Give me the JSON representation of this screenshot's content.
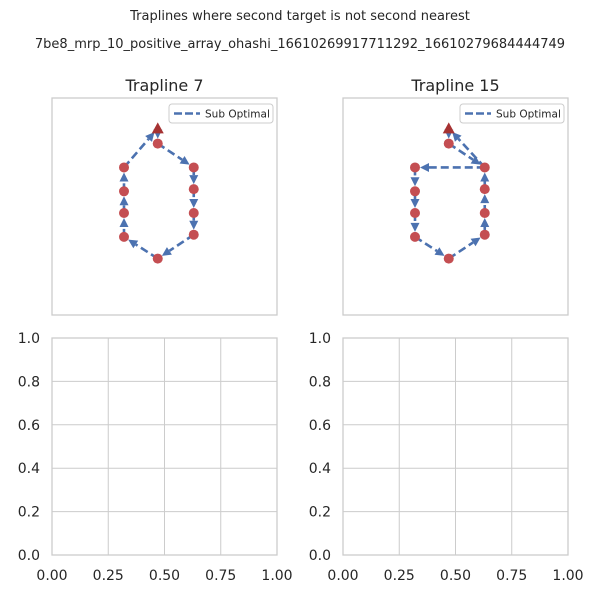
{
  "figure": {
    "title_line1": "Traplines where second target is not second nearest",
    "title_line2": "7be8_mrp_10_positive_array_ohashi_16610269917711292_16610279684444749"
  },
  "colors": {
    "line": "#4c72b0",
    "flower": "#c44e52",
    "nest": "#a63232",
    "grid": "#cccccc",
    "frame": "#cccccc",
    "text": "#262626"
  },
  "chart_data": [
    {
      "type": "line",
      "title": "Trapline 7",
      "axes_visible": false,
      "legend": {
        "entries": [
          "Sub Optimal"
        ],
        "placement": "top-right"
      },
      "nest": {
        "x": 0.47,
        "y": 0.86
      },
      "flowers": [
        {
          "x": 0.47,
          "y": 0.79
        },
        {
          "x": 0.63,
          "y": 0.68
        },
        {
          "x": 0.63,
          "y": 0.58
        },
        {
          "x": 0.63,
          "y": 0.47
        },
        {
          "x": 0.63,
          "y": 0.37
        },
        {
          "x": 0.47,
          "y": 0.26
        },
        {
          "x": 0.32,
          "y": 0.36
        },
        {
          "x": 0.32,
          "y": 0.47
        },
        {
          "x": 0.32,
          "y": 0.57
        },
        {
          "x": 0.32,
          "y": 0.68
        }
      ],
      "route": [
        {
          "x": 0.47,
          "y": 0.86
        },
        {
          "x": 0.47,
          "y": 0.79
        },
        {
          "x": 0.63,
          "y": 0.68
        },
        {
          "x": 0.63,
          "y": 0.58
        },
        {
          "x": 0.63,
          "y": 0.47
        },
        {
          "x": 0.63,
          "y": 0.37
        },
        {
          "x": 0.47,
          "y": 0.26
        },
        {
          "x": 0.32,
          "y": 0.36
        },
        {
          "x": 0.32,
          "y": 0.47
        },
        {
          "x": 0.32,
          "y": 0.57
        },
        {
          "x": 0.32,
          "y": 0.68
        },
        {
          "x": 0.47,
          "y": 0.86
        }
      ]
    },
    {
      "type": "line",
      "title": "Trapline 15",
      "axes_visible": false,
      "legend": {
        "entries": [
          "Sub Optimal"
        ],
        "placement": "top-right"
      },
      "nest": {
        "x": 0.47,
        "y": 0.86
      },
      "flowers": [
        {
          "x": 0.47,
          "y": 0.79
        },
        {
          "x": 0.63,
          "y": 0.68
        },
        {
          "x": 0.63,
          "y": 0.58
        },
        {
          "x": 0.63,
          "y": 0.47
        },
        {
          "x": 0.63,
          "y": 0.37
        },
        {
          "x": 0.47,
          "y": 0.26
        },
        {
          "x": 0.32,
          "y": 0.36
        },
        {
          "x": 0.32,
          "y": 0.47
        },
        {
          "x": 0.32,
          "y": 0.57
        },
        {
          "x": 0.32,
          "y": 0.68
        }
      ],
      "route": [
        {
          "x": 0.47,
          "y": 0.86
        },
        {
          "x": 0.47,
          "y": 0.79
        },
        {
          "x": 0.63,
          "y": 0.68
        },
        {
          "x": 0.32,
          "y": 0.68
        },
        {
          "x": 0.32,
          "y": 0.57
        },
        {
          "x": 0.32,
          "y": 0.47
        },
        {
          "x": 0.32,
          "y": 0.36
        },
        {
          "x": 0.47,
          "y": 0.26
        },
        {
          "x": 0.63,
          "y": 0.37
        },
        {
          "x": 0.63,
          "y": 0.47
        },
        {
          "x": 0.63,
          "y": 0.58
        },
        {
          "x": 0.63,
          "y": 0.68
        },
        {
          "x": 0.47,
          "y": 0.86
        }
      ]
    },
    {
      "type": "line",
      "title": "",
      "axes_visible": true,
      "grid": true,
      "xlim": [
        0,
        1
      ],
      "ylim": [
        0,
        1
      ],
      "xticks": [
        "0.00",
        "0.25",
        "0.50",
        "0.75",
        "1.00"
      ],
      "yticks": [
        "0.0",
        "0.2",
        "0.4",
        "0.6",
        "0.8",
        "1.0"
      ],
      "series": []
    },
    {
      "type": "line",
      "title": "",
      "axes_visible": true,
      "grid": true,
      "xlim": [
        0,
        1
      ],
      "ylim": [
        0,
        1
      ],
      "xticks": [
        "0.00",
        "0.25",
        "0.50",
        "0.75",
        "1.00"
      ],
      "yticks": [
        "0.0",
        "0.2",
        "0.4",
        "0.6",
        "0.8",
        "1.0"
      ],
      "series": []
    }
  ]
}
